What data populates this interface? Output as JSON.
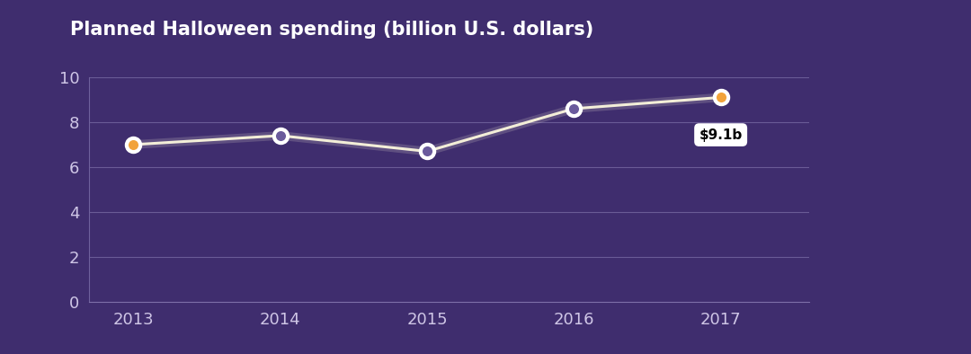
{
  "chart_data": {
    "type": "line",
    "title": "Planned Halloween spending (billion U.S. dollars)",
    "categories": [
      "2013",
      "2014",
      "2015",
      "2016",
      "2017"
    ],
    "values": [
      7.0,
      7.4,
      6.7,
      8.6,
      9.1
    ],
    "value_labels": [
      null,
      null,
      null,
      null,
      "$9.1b"
    ],
    "color": "#f3eed8",
    "marker": "o",
    "line_style": "solid",
    "ylim": [
      0,
      10
    ],
    "yticks": [
      0,
      2,
      4,
      6,
      8,
      10
    ],
    "grid": true
  }
}
